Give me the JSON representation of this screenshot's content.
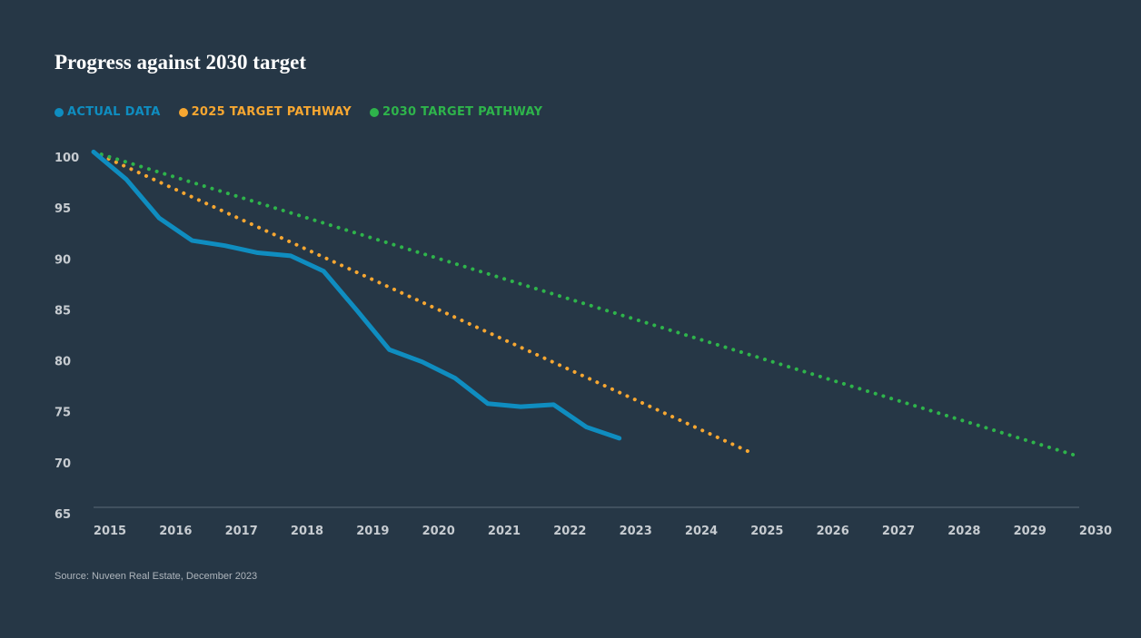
{
  "chart_data": {
    "type": "line",
    "title": "Progress against 2030 target",
    "xlabel": "",
    "ylabel": "",
    "ylim": [
      65,
      100
    ],
    "xlim": [
      2015,
      2030
    ],
    "y_ticks": [
      100,
      95,
      90,
      85,
      80,
      75,
      70,
      65
    ],
    "x_ticks": [
      "2015",
      "2016",
      "2017",
      "2018",
      "2019",
      "2020",
      "2021",
      "2022",
      "2023",
      "2024",
      "2025",
      "2026",
      "2027",
      "2028",
      "2029",
      "2030"
    ],
    "grid": false,
    "legend": "top-left",
    "series": [
      {
        "name": "ACTUAL DATA",
        "color": "#0f8dc0",
        "style": "solid",
        "points": [
          {
            "x": 2015.0,
            "y": 100.5
          },
          {
            "x": 2015.5,
            "y": 97.8
          },
          {
            "x": 2016.0,
            "y": 94.0
          },
          {
            "x": 2016.5,
            "y": 91.8
          },
          {
            "x": 2017.0,
            "y": 91.3
          },
          {
            "x": 2017.5,
            "y": 90.6
          },
          {
            "x": 2018.0,
            "y": 90.3
          },
          {
            "x": 2018.5,
            "y": 88.8
          },
          {
            "x": 2019.0,
            "y": 85.0
          },
          {
            "x": 2019.5,
            "y": 81.1
          },
          {
            "x": 2020.0,
            "y": 79.9
          },
          {
            "x": 2020.5,
            "y": 78.3
          },
          {
            "x": 2021.0,
            "y": 75.8
          },
          {
            "x": 2021.5,
            "y": 75.5
          },
          {
            "x": 2022.0,
            "y": 75.7
          },
          {
            "x": 2022.5,
            "y": 73.5
          },
          {
            "x": 2023.0,
            "y": 72.4
          }
        ]
      },
      {
        "name": "2025 TARGET PATHWAY",
        "color": "#f7a731",
        "style": "dotted",
        "points": [
          {
            "x": 2015.0,
            "y": 100.5
          },
          {
            "x": 2025.0,
            "y": 71.0
          }
        ]
      },
      {
        "name": "2030 TARGET PATHWAY",
        "color": "#2eb44b",
        "style": "dotted",
        "points": [
          {
            "x": 2015.0,
            "y": 100.5
          },
          {
            "x": 2030.0,
            "y": 70.6
          }
        ]
      }
    ],
    "source": "Source: Nuveen Real Estate, December 2023"
  }
}
